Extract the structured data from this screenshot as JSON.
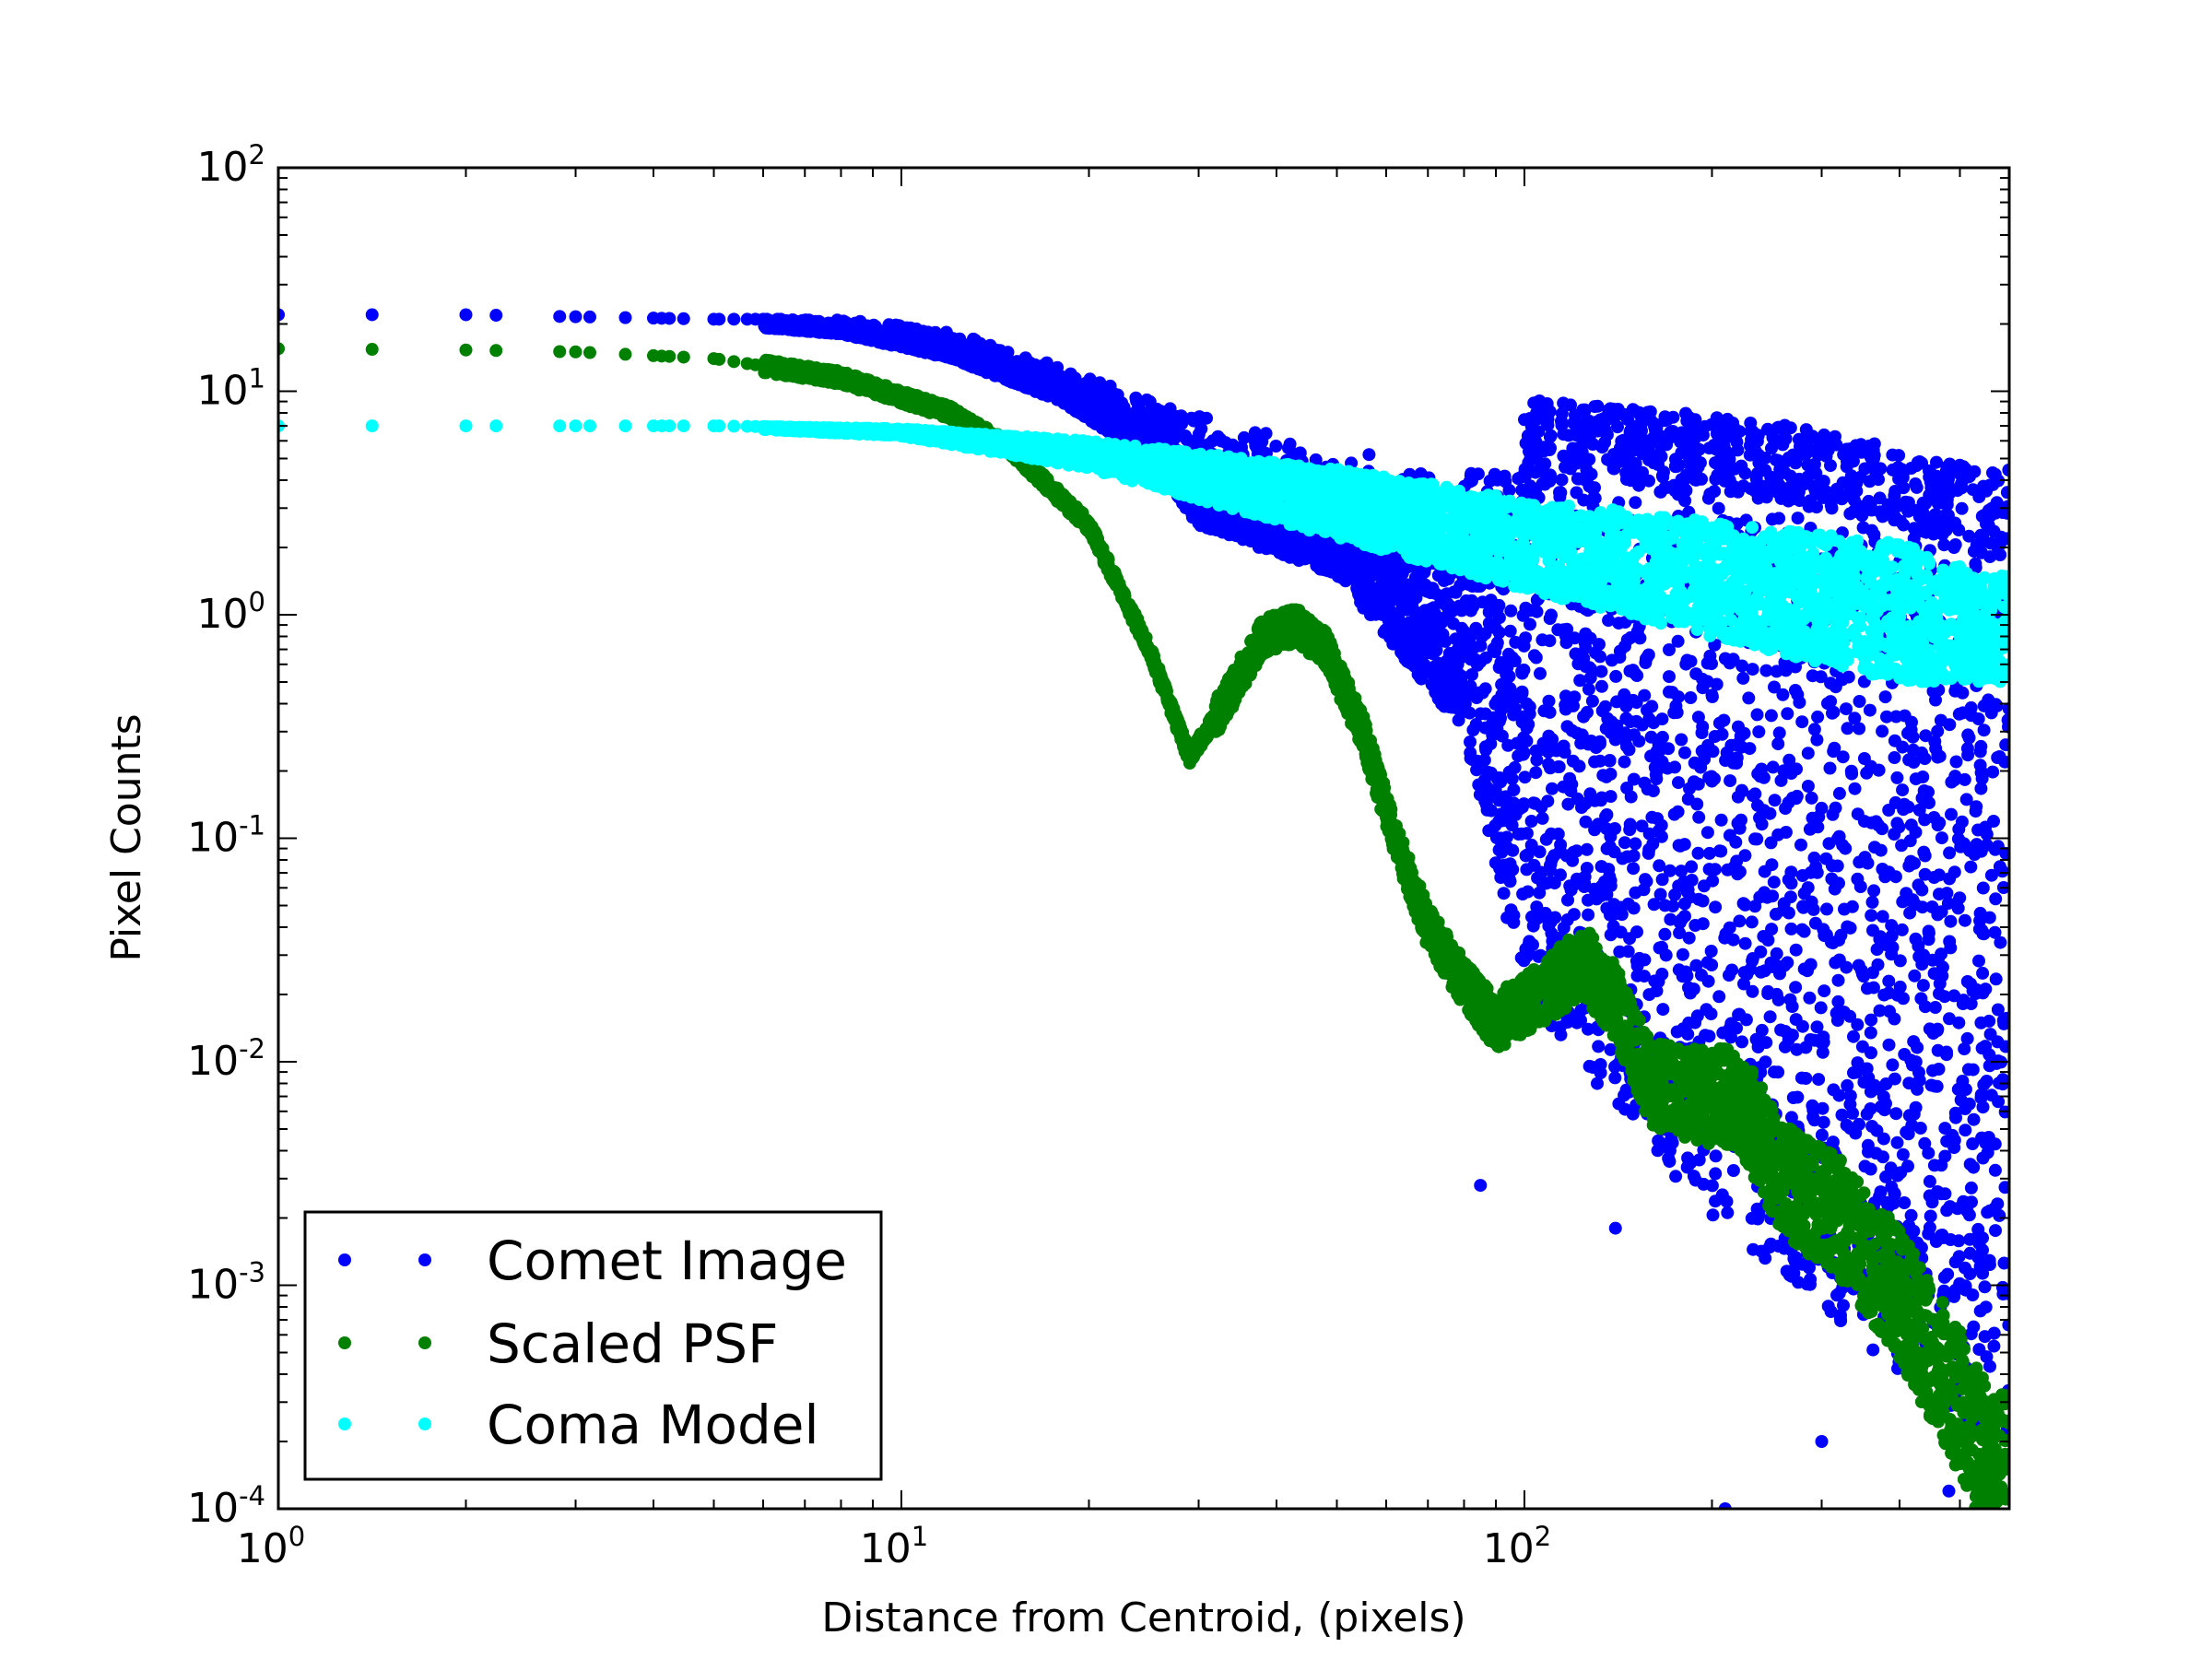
{
  "chart_data": {
    "type": "scatter",
    "title": "",
    "xlabel": "Distance from Centroid, (pixels)",
    "ylabel": "Pixel Counts",
    "xscale": "log",
    "yscale": "log",
    "xlim": [
      1,
      600
    ],
    "ylim": [
      0.0001,
      100
    ],
    "x_ticks": [
      {
        "base": "10",
        "exp": "0",
        "value": 1
      },
      {
        "base": "10",
        "exp": "1",
        "value": 10
      },
      {
        "base": "10",
        "exp": "2",
        "value": 100
      }
    ],
    "y_ticks": [
      {
        "base": "10",
        "exp": "-4",
        "value": 0.0001
      },
      {
        "base": "10",
        "exp": "-3",
        "value": 0.001
      },
      {
        "base": "10",
        "exp": "-2",
        "value": 0.01
      },
      {
        "base": "10",
        "exp": "-1",
        "value": 0.1
      },
      {
        "base": "10",
        "exp": "0",
        "value": 1
      },
      {
        "base": "10",
        "exp": "1",
        "value": 10
      },
      {
        "base": "10",
        "exp": "2",
        "value": 100
      }
    ],
    "legend_position": "lower-left",
    "grid": false,
    "series": [
      {
        "name": "Comet Image",
        "color": "#0000ff",
        "profile": [
          [
            1,
            22
          ],
          [
            2,
            22
          ],
          [
            5,
            21
          ],
          [
            8,
            21
          ],
          [
            12,
            19
          ],
          [
            18,
            13
          ],
          [
            30,
            8
          ],
          [
            50,
            6
          ],
          [
            80,
            4.5
          ],
          [
            120,
            4
          ],
          [
            200,
            3.5
          ],
          [
            300,
            3
          ],
          [
            400,
            2.5
          ],
          [
            550,
            2
          ]
        ],
        "lower_envelope": [
          [
            1,
            22
          ],
          [
            5,
            20
          ],
          [
            8,
            18
          ],
          [
            12,
            14
          ],
          [
            18,
            9
          ],
          [
            25,
            5
          ],
          [
            30,
            2.5
          ],
          [
            50,
            1.5
          ],
          [
            80,
            0.3
          ],
          [
            100,
            0.02
          ],
          [
            150,
            0.005
          ],
          [
            200,
            0.002
          ],
          [
            300,
            0.0008
          ],
          [
            450,
            0.0003
          ],
          [
            550,
            0.0002
          ]
        ],
        "outliers": [
          [
            85,
            0.0028
          ],
          [
            140,
            0.0018
          ],
          [
            210,
            0.0001
          ],
          [
            480,
            0.00012
          ],
          [
            300,
            0.0002
          ]
        ]
      },
      {
        "name": "Scaled PSF",
        "color": "#008000",
        "profile": [
          [
            1,
            15.5
          ],
          [
            2,
            15.3
          ],
          [
            3,
            15
          ],
          [
            5,
            14
          ],
          [
            8,
            11.5
          ],
          [
            12,
            8
          ],
          [
            15,
            5.5
          ],
          [
            20,
            2.5
          ],
          [
            25,
            0.7
          ],
          [
            29,
            0.23
          ],
          [
            33,
            0.4
          ],
          [
            38,
            0.8
          ],
          [
            43,
            0.9
          ],
          [
            48,
            0.7
          ],
          [
            55,
            0.3
          ],
          [
            62,
            0.1
          ],
          [
            70,
            0.04
          ],
          [
            78,
            0.025
          ],
          [
            90,
            0.015
          ],
          [
            105,
            0.02
          ],
          [
            125,
            0.028
          ],
          [
            140,
            0.018
          ],
          [
            160,
            0.008
          ],
          [
            190,
            0.007
          ],
          [
            220,
            0.007
          ],
          [
            260,
            0.003
          ],
          [
            320,
            0.002
          ],
          [
            400,
            0.0009
          ],
          [
            500,
            0.0003
          ],
          [
            560,
            0.00015
          ]
        ],
        "band": 1.6
      },
      {
        "name": "Coma Model",
        "color": "#00ffff",
        "upper": [
          [
            1,
            7
          ],
          [
            5,
            7
          ],
          [
            10,
            6.8
          ],
          [
            20,
            6
          ],
          [
            50,
            4.5
          ],
          [
            100,
            3.3
          ],
          [
            200,
            2.6
          ],
          [
            400,
            2.1
          ],
          [
            550,
            1.5
          ]
        ],
        "lower": [
          [
            1,
            7
          ],
          [
            5,
            6.9
          ],
          [
            10,
            6.3
          ],
          [
            20,
            4.5
          ],
          [
            50,
            2.2
          ],
          [
            100,
            1.3
          ],
          [
            200,
            0.8
          ],
          [
            400,
            0.5
          ],
          [
            550,
            0.5
          ]
        ]
      }
    ]
  }
}
